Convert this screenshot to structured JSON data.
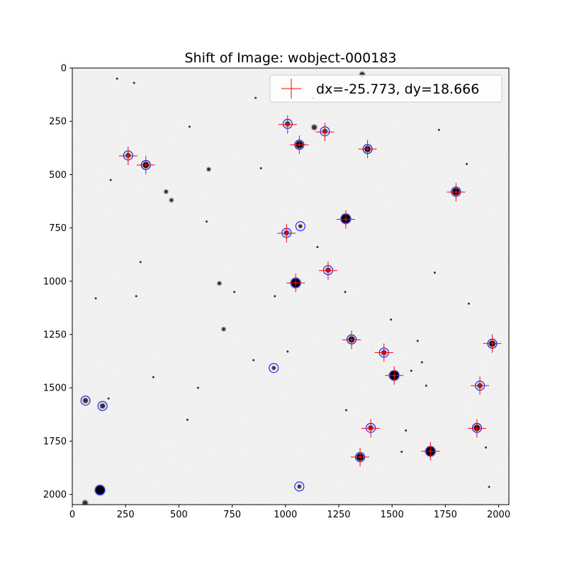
{
  "chart_data": {
    "type": "scatter",
    "title": "Shift of Image: wobject-000183",
    "xlabel": "",
    "ylabel": "",
    "xlim": [
      0,
      2048
    ],
    "ylim": [
      2048,
      0
    ],
    "x_ticks": [
      0,
      250,
      500,
      750,
      1000,
      1250,
      1500,
      1750,
      2000
    ],
    "y_ticks": [
      0,
      250,
      500,
      750,
      1000,
      1250,
      1500,
      1750,
      2000
    ],
    "grid": false,
    "legend_position": "top-right",
    "legend_label": "dx=-25.773, dy=18.666",
    "marker_color": "#ff0000",
    "circle_color": "#0000ff",
    "crosses": [
      [
        1010,
        265
      ],
      [
        1185,
        300
      ],
      [
        1065,
        360
      ],
      [
        1385,
        380
      ],
      [
        262,
        412
      ],
      [
        345,
        455
      ],
      [
        1800,
        582
      ],
      [
        1283,
        710
      ],
      [
        1005,
        775
      ],
      [
        1200,
        950
      ],
      [
        1048,
        1008
      ],
      [
        1310,
        1275
      ],
      [
        1970,
        1292
      ],
      [
        1462,
        1335
      ],
      [
        1510,
        1442
      ],
      [
        1912,
        1490
      ],
      [
        1400,
        1690
      ],
      [
        1898,
        1690
      ],
      [
        1680,
        1798
      ],
      [
        1350,
        1825
      ]
    ],
    "circles": [
      [
        1010,
        262
      ],
      [
        1185,
        297
      ],
      [
        1065,
        360
      ],
      [
        1385,
        380
      ],
      [
        262,
        410
      ],
      [
        345,
        455
      ],
      [
        1800,
        580
      ],
      [
        1283,
        707
      ],
      [
        1005,
        773
      ],
      [
        1070,
        742
      ],
      [
        1200,
        948
      ],
      [
        1048,
        1008
      ],
      [
        1310,
        1273
      ],
      [
        1970,
        1293
      ],
      [
        1462,
        1335
      ],
      [
        1510,
        1442
      ],
      [
        945,
        1407
      ],
      [
        1912,
        1490
      ],
      [
        62,
        1560
      ],
      [
        142,
        1585
      ],
      [
        1400,
        1688
      ],
      [
        1898,
        1688
      ],
      [
        1680,
        1798
      ],
      [
        1350,
        1825
      ],
      [
        130,
        1980
      ],
      [
        1065,
        1963
      ]
    ],
    "stars": [
      [
        1010,
        262,
        3
      ],
      [
        1185,
        297,
        3
      ],
      [
        1065,
        360,
        5
      ],
      [
        1385,
        380,
        4
      ],
      [
        262,
        410,
        3
      ],
      [
        345,
        455,
        4
      ],
      [
        1800,
        580,
        5
      ],
      [
        1283,
        707,
        6
      ],
      [
        1005,
        773,
        3
      ],
      [
        1070,
        742,
        2
      ],
      [
        1200,
        948,
        3
      ],
      [
        1048,
        1008,
        6
      ],
      [
        1310,
        1273,
        4
      ],
      [
        1970,
        1293,
        4
      ],
      [
        1462,
        1335,
        3
      ],
      [
        1510,
        1442,
        6
      ],
      [
        945,
        1407,
        2
      ],
      [
        1912,
        1490,
        3
      ],
      [
        62,
        1560,
        3
      ],
      [
        142,
        1585,
        3
      ],
      [
        1400,
        1688,
        3
      ],
      [
        1898,
        1688,
        4
      ],
      [
        1680,
        1798,
        6
      ],
      [
        1350,
        1825,
        5
      ],
      [
        130,
        1980,
        6
      ],
      [
        1065,
        1963,
        2
      ],
      [
        1135,
        278,
        3
      ],
      [
        1360,
        30,
        3
      ],
      [
        210,
        50,
        1
      ],
      [
        290,
        70,
        1
      ],
      [
        860,
        140,
        1
      ],
      [
        1450,
        110,
        1
      ],
      [
        1720,
        290,
        1
      ],
      [
        1130,
        140,
        1
      ],
      [
        640,
        475,
        2
      ],
      [
        440,
        580,
        2
      ],
      [
        465,
        620,
        2
      ],
      [
        885,
        470,
        1
      ],
      [
        630,
        720,
        1
      ],
      [
        690,
        1010,
        2
      ],
      [
        710,
        1225,
        2
      ],
      [
        850,
        1370,
        1
      ],
      [
        1620,
        1280,
        1
      ],
      [
        1590,
        1420,
        1
      ],
      [
        1640,
        1380,
        1
      ],
      [
        1010,
        1330,
        1
      ],
      [
        1495,
        1180,
        1
      ],
      [
        1660,
        1490,
        1
      ],
      [
        1565,
        1700,
        1
      ],
      [
        1285,
        1605,
        1
      ],
      [
        1940,
        1780,
        1
      ],
      [
        1955,
        1965,
        1
      ],
      [
        1545,
        1800,
        1
      ],
      [
        590,
        1500,
        1
      ],
      [
        540,
        1650,
        1
      ],
      [
        300,
        1070,
        1
      ],
      [
        180,
        525,
        1
      ],
      [
        550,
        275,
        1
      ],
      [
        1280,
        1050,
        1
      ],
      [
        320,
        910,
        1
      ],
      [
        1150,
        840,
        1
      ],
      [
        950,
        1070,
        1
      ],
      [
        1700,
        960,
        1
      ],
      [
        1860,
        1105,
        1
      ],
      [
        170,
        1550,
        1
      ],
      [
        1850,
        450,
        1
      ],
      [
        110,
        1080,
        1
      ],
      [
        60,
        2040,
        3
      ],
      [
        760,
        1050,
        1
      ],
      [
        380,
        1450,
        1
      ]
    ]
  }
}
